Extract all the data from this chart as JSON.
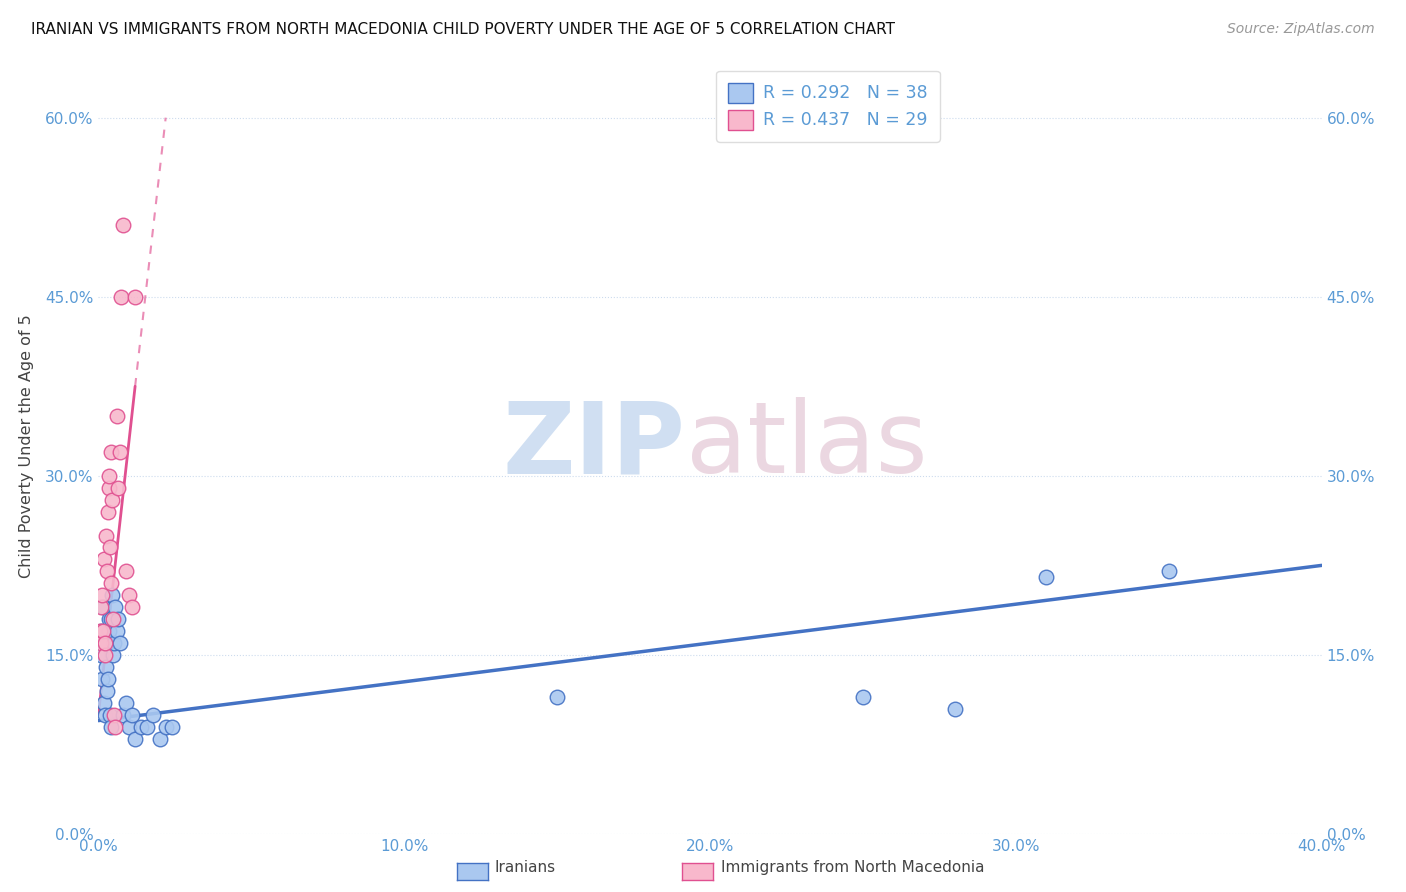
{
  "title": "IRANIAN VS IMMIGRANTS FROM NORTH MACEDONIA CHILD POVERTY UNDER THE AGE OF 5 CORRELATION CHART",
  "source": "Source: ZipAtlas.com",
  "ylabel": "Child Poverty Under the Age of 5",
  "xlim": [
    0,
    0.4
  ],
  "ylim": [
    0,
    0.65
  ],
  "yticks": [
    0,
    0.15,
    0.3,
    0.45,
    0.6
  ],
  "xticks": [
    0,
    0.1,
    0.2,
    0.3,
    0.4
  ],
  "background_color": "#ffffff",
  "color_iranian": "#aac8f0",
  "color_macedonia": "#f8b8cc",
  "color_line_iranian": "#4472c4",
  "color_line_macedonia": "#e05090",
  "label_iranian": "Iranians",
  "label_macedonia": "Immigrants from North Macedonia",
  "iranian_x": [
    0.0008,
    0.001,
    0.0012,
    0.0015,
    0.0018,
    0.002,
    0.0022,
    0.0025,
    0.0028,
    0.003,
    0.0033,
    0.0035,
    0.0038,
    0.004,
    0.0042,
    0.0045,
    0.0048,
    0.005,
    0.0055,
    0.006,
    0.0065,
    0.007,
    0.008,
    0.009,
    0.01,
    0.011,
    0.012,
    0.014,
    0.016,
    0.018,
    0.02,
    0.022,
    0.024,
    0.15,
    0.25,
    0.28,
    0.31,
    0.35
  ],
  "iranian_y": [
    0.17,
    0.15,
    0.13,
    0.19,
    0.11,
    0.1,
    0.16,
    0.14,
    0.12,
    0.13,
    0.18,
    0.17,
    0.1,
    0.09,
    0.18,
    0.2,
    0.15,
    0.16,
    0.19,
    0.17,
    0.18,
    0.16,
    0.1,
    0.11,
    0.09,
    0.1,
    0.08,
    0.09,
    0.09,
    0.1,
    0.08,
    0.09,
    0.09,
    0.115,
    0.115,
    0.105,
    0.215,
    0.22
  ],
  "macedonia_x": [
    0.0005,
    0.0008,
    0.001,
    0.0012,
    0.0015,
    0.0018,
    0.002,
    0.0022,
    0.0025,
    0.0028,
    0.003,
    0.0033,
    0.0035,
    0.0038,
    0.004,
    0.0042,
    0.0045,
    0.0048,
    0.005,
    0.0055,
    0.006,
    0.0065,
    0.007,
    0.0075,
    0.008,
    0.009,
    0.01,
    0.011,
    0.012
  ],
  "macedonia_y": [
    0.17,
    0.19,
    0.16,
    0.2,
    0.17,
    0.23,
    0.15,
    0.16,
    0.25,
    0.22,
    0.27,
    0.29,
    0.3,
    0.24,
    0.21,
    0.32,
    0.28,
    0.18,
    0.1,
    0.09,
    0.35,
    0.29,
    0.32,
    0.45,
    0.51,
    0.22,
    0.2,
    0.19,
    0.45
  ],
  "blue_line_x0": 0.0,
  "blue_line_y0": 0.095,
  "blue_line_x1": 0.4,
  "blue_line_y1": 0.225,
  "pink_line_solid_x0": 0.0,
  "pink_line_solid_y0": 0.1,
  "pink_line_solid_x1": 0.012,
  "pink_line_solid_y1": 0.375,
  "pink_line_dash_x0": 0.012,
  "pink_line_dash_y0": 0.375,
  "pink_line_dash_x1": 0.022,
  "pink_line_dash_y1": 0.6
}
